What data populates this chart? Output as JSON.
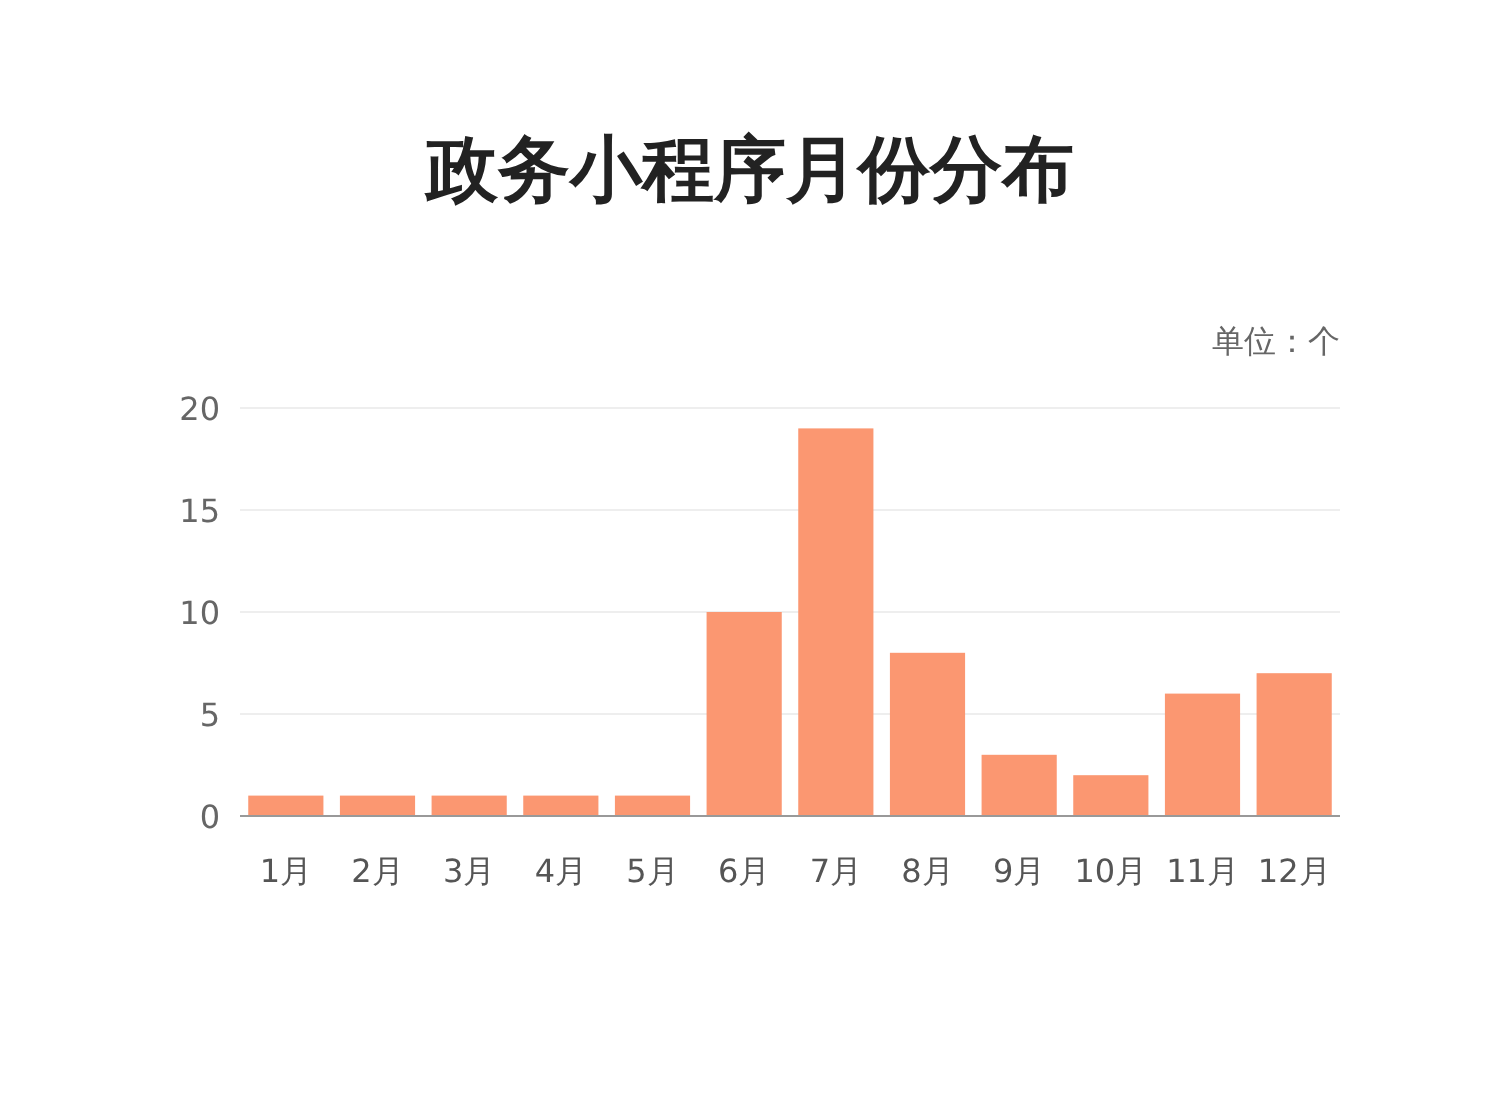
{
  "chart_data": {
    "type": "bar",
    "title": "政务小程序月份分布",
    "ylabel": "单位：个",
    "categories": [
      "1月",
      "2月",
      "3月",
      "4月",
      "5月",
      "6月",
      "7月",
      "8月",
      "9月",
      "10月",
      "11月",
      "12月"
    ],
    "values": [
      1,
      1,
      1,
      1,
      1,
      10,
      19,
      8,
      3,
      2,
      6,
      7
    ],
    "color": "#fb9771",
    "ylim": [
      0,
      20
    ],
    "yticks": [
      0,
      5,
      10,
      15,
      20
    ],
    "grid": "y"
  }
}
